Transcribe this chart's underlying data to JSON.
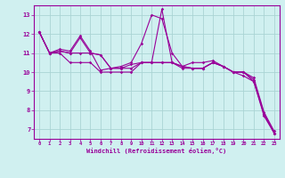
{
  "x": [
    0,
    1,
    2,
    3,
    4,
    5,
    6,
    7,
    8,
    9,
    10,
    11,
    12,
    13,
    14,
    15,
    16,
    17,
    18,
    19,
    20,
    21,
    22,
    23
  ],
  "line1": [
    12.1,
    11.0,
    11.1,
    11.0,
    11.8,
    11.0,
    10.9,
    10.2,
    10.2,
    10.2,
    10.5,
    10.5,
    10.5,
    10.5,
    10.3,
    10.2,
    10.2,
    10.5,
    10.3,
    10.0,
    10.0,
    9.7,
    7.9,
    6.9
  ],
  "line2": [
    12.1,
    11.0,
    11.2,
    11.1,
    11.9,
    11.1,
    10.1,
    10.2,
    10.3,
    10.5,
    11.5,
    13.0,
    12.8,
    11.0,
    10.3,
    10.5,
    10.5,
    10.6,
    10.3,
    10.0,
    10.0,
    9.6,
    7.8,
    6.8
  ],
  "line3": [
    12.1,
    11.0,
    11.1,
    11.0,
    11.0,
    11.0,
    10.9,
    10.2,
    10.2,
    10.4,
    10.5,
    10.5,
    13.3,
    10.5,
    10.3,
    10.2,
    10.2,
    10.5,
    10.3,
    10.0,
    10.0,
    9.5,
    7.8,
    6.8
  ],
  "line4": [
    12.1,
    11.0,
    11.0,
    10.5,
    10.5,
    10.5,
    10.0,
    10.0,
    10.0,
    10.0,
    10.5,
    10.5,
    10.5,
    10.5,
    10.2,
    10.2,
    10.2,
    10.5,
    10.3,
    10.0,
    9.8,
    9.5,
    7.7,
    6.8
  ],
  "color": "#990099",
  "bg_color": "#d0f0f0",
  "grid_color": "#aad4d4",
  "xlabel": "Windchill (Refroidissement éolien,°C)",
  "ylabel_ticks": [
    7,
    8,
    9,
    10,
    11,
    12,
    13
  ],
  "xtick_labels": [
    "0",
    "1",
    "2",
    "3",
    "4",
    "5",
    "6",
    "7",
    "8",
    "9",
    "10",
    "11",
    "12",
    "13",
    "14",
    "15",
    "16",
    "17",
    "18",
    "19",
    "20",
    "21",
    "22",
    "23"
  ],
  "ylim": [
    6.5,
    13.5
  ],
  "xlim": [
    -0.5,
    23.5
  ]
}
